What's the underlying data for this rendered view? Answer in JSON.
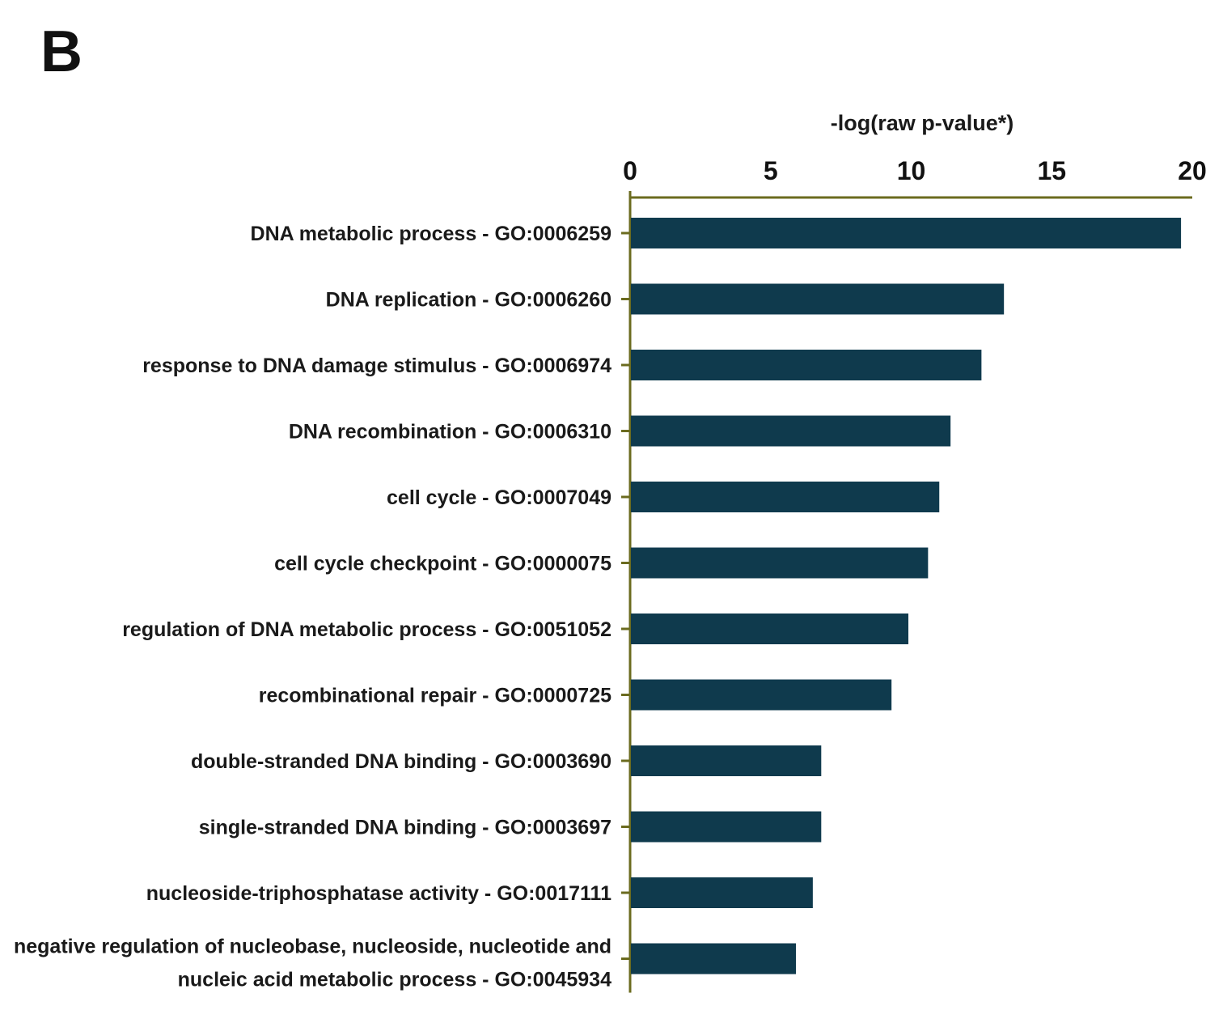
{
  "panel_label": "B",
  "chart_data": {
    "type": "bar",
    "orientation": "horizontal",
    "title": "",
    "xlabel": "-log(raw p-value*)",
    "ylabel": "",
    "xlim": [
      0,
      20
    ],
    "xticks": [
      "0",
      "5",
      "10",
      "15",
      "20"
    ],
    "x_axis_position": "top",
    "grid": false,
    "legend": "none",
    "categories": [
      [
        "DNA metabolic process - GO:0006259"
      ],
      [
        "DNA replication - GO:0006260"
      ],
      [
        "response to DNA damage stimulus - GO:0006974"
      ],
      [
        "DNA recombination - GO:0006310"
      ],
      [
        "cell cycle - GO:0007049"
      ],
      [
        "cell cycle checkpoint - GO:0000075"
      ],
      [
        "regulation of DNA metabolic process - GO:0051052"
      ],
      [
        "recombinational repair - GO:0000725"
      ],
      [
        "double-stranded DNA binding - GO:0003690"
      ],
      [
        "single-stranded DNA binding - GO:0003697"
      ],
      [
        "nucleoside-triphosphatase activity - GO:0017111"
      ],
      [
        "negative regulation of nucleobase, nucleoside, nucleotide and",
        "nucleic acid metabolic process - GO:0045934"
      ]
    ],
    "values": [
      19.6,
      13.3,
      12.5,
      11.4,
      11.0,
      10.6,
      9.9,
      9.3,
      6.8,
      6.8,
      6.5,
      5.9
    ],
    "colors": {
      "bar": "#0f3a4d",
      "axis": "#6b6b1f"
    }
  }
}
